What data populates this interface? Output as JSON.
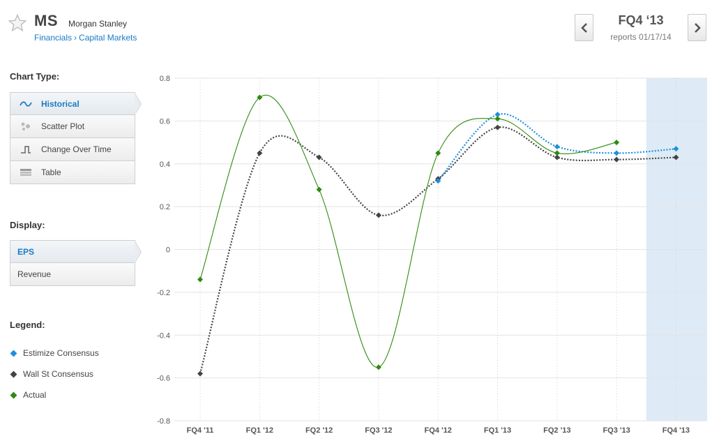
{
  "header": {
    "ticker": "MS",
    "company": "Morgan Stanley",
    "sector": "Financials",
    "industry": "Capital Markets",
    "breadcrumb_sep": "›",
    "period": "FQ4 ‘13",
    "report_date": "reports 01/17/14"
  },
  "sidebar": {
    "chart_type_label": "Chart Type:",
    "chart_types": [
      {
        "label": "Historical",
        "icon": "wave-icon"
      },
      {
        "label": "Scatter Plot",
        "icon": "dots-icon"
      },
      {
        "label": "Change Over Time",
        "icon": "step-icon"
      },
      {
        "label": "Table",
        "icon": "table-icon"
      }
    ],
    "display_label": "Display:",
    "display_options": [
      "EPS",
      "Revenue"
    ],
    "legend_label": "Legend:"
  },
  "colors": {
    "estimize": "#1e8fdf",
    "wallst": "#444444",
    "actual": "#2f8a10",
    "highlight": "#deebf6",
    "link": "#1a7bc4"
  },
  "chart_data": {
    "type": "line",
    "categories": [
      "FQ4 '11",
      "FQ1 '12",
      "FQ2 '12",
      "FQ3 '12",
      "FQ4 '12",
      "FQ1 '13",
      "FQ2 '13",
      "FQ3 '13",
      "FQ4 '13"
    ],
    "ylim": [
      -0.8,
      0.8
    ],
    "yticks": [
      -0.8,
      -0.6,
      -0.4,
      -0.2,
      0,
      0.2,
      0.4,
      0.6,
      0.8
    ],
    "ytick_labels": [
      "-0.8",
      "-0.6",
      "-0.4",
      "-0.2",
      "0",
      "0.2",
      "0.4",
      "0.6",
      "0.8"
    ],
    "highlight_category": "FQ4 '13",
    "grid": true,
    "series": [
      {
        "name": "Estimize Consensus",
        "color": "#1e8fdf",
        "style": "dotted",
        "values": [
          null,
          null,
          null,
          null,
          0.32,
          0.63,
          0.48,
          0.45,
          0.47
        ]
      },
      {
        "name": "Wall St Consensus",
        "color": "#444444",
        "style": "dotted",
        "values": [
          -0.58,
          0.45,
          0.43,
          0.16,
          0.33,
          0.57,
          0.43,
          0.42,
          0.43
        ]
      },
      {
        "name": "Actual",
        "color": "#2f8a10",
        "style": "solid",
        "values": [
          -0.14,
          0.71,
          0.28,
          -0.55,
          0.45,
          0.61,
          0.45,
          0.5,
          null
        ]
      }
    ]
  }
}
